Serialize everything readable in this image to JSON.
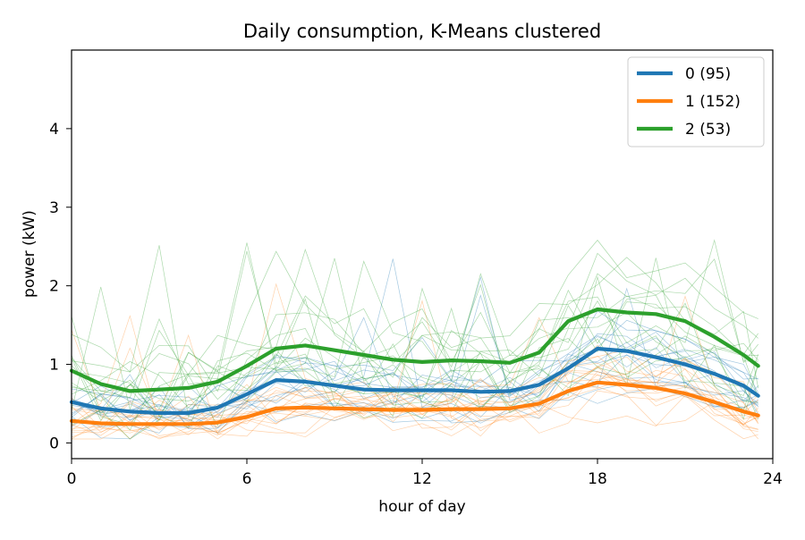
{
  "chart_data": {
    "type": "line",
    "title": "Daily consumption, K-Means clustered",
    "xlabel": "hour of day",
    "ylabel": "power (kW)",
    "xlim": [
      0,
      24
    ],
    "ylim": [
      -0.2,
      5.0
    ],
    "xticks": [
      0,
      6,
      12,
      18,
      24
    ],
    "yticks": [
      0,
      1,
      2,
      3,
      4
    ],
    "grid": false,
    "legend_position": "top-right",
    "series": [
      {
        "name": "0 (95)",
        "color": "#1f77b4",
        "n_profiles": 95,
        "x": [
          0,
          1,
          2,
          3,
          4,
          5,
          6,
          7,
          8,
          9,
          10,
          11,
          12,
          13,
          14,
          15,
          16,
          17,
          18,
          19,
          20,
          21,
          22,
          23,
          23.5
        ],
        "values": [
          0.52,
          0.44,
          0.4,
          0.38,
          0.38,
          0.45,
          0.62,
          0.8,
          0.78,
          0.73,
          0.68,
          0.67,
          0.67,
          0.67,
          0.65,
          0.66,
          0.74,
          0.95,
          1.2,
          1.17,
          1.09,
          1.0,
          0.88,
          0.73,
          0.6
        ]
      },
      {
        "name": "1 (152)",
        "color": "#ff7f0e",
        "n_profiles": 152,
        "x": [
          0,
          1,
          2,
          3,
          4,
          5,
          6,
          7,
          8,
          9,
          10,
          11,
          12,
          13,
          14,
          15,
          16,
          17,
          18,
          19,
          20,
          21,
          22,
          23,
          23.5
        ],
        "values": [
          0.28,
          0.25,
          0.24,
          0.24,
          0.24,
          0.26,
          0.33,
          0.44,
          0.45,
          0.44,
          0.43,
          0.42,
          0.42,
          0.43,
          0.43,
          0.44,
          0.5,
          0.66,
          0.77,
          0.74,
          0.7,
          0.63,
          0.52,
          0.4,
          0.35
        ]
      },
      {
        "name": "2 (53)",
        "color": "#2ca02c",
        "n_profiles": 53,
        "x": [
          0,
          1,
          2,
          3,
          4,
          5,
          6,
          7,
          8,
          9,
          10,
          11,
          12,
          13,
          14,
          15,
          16,
          17,
          18,
          19,
          20,
          21,
          22,
          23,
          23.5
        ],
        "values": [
          0.92,
          0.75,
          0.66,
          0.68,
          0.7,
          0.78,
          0.98,
          1.2,
          1.24,
          1.18,
          1.12,
          1.06,
          1.03,
          1.05,
          1.04,
          1.02,
          1.15,
          1.55,
          1.7,
          1.66,
          1.64,
          1.55,
          1.35,
          1.12,
          0.98
        ]
      }
    ]
  }
}
